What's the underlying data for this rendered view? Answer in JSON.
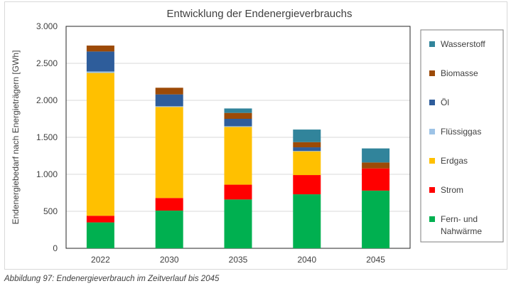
{
  "chart_data": {
    "type": "bar",
    "stacked": true,
    "title": "Entwicklung der Endenergieverbrauchs",
    "ylabel": "Endenergiebedarf  nach Energieträgern  [GWh]",
    "xlabel": "",
    "ylim": [
      0,
      3000
    ],
    "yticks": [
      0,
      500,
      1000,
      1500,
      2000,
      2500,
      3000
    ],
    "yticklabels": [
      "0",
      "500",
      "1.000",
      "1.500",
      "2.000",
      "2.500",
      "3.000"
    ],
    "grid": "horizontal",
    "legend_position": "right",
    "categories": [
      "2022",
      "2030",
      "2035",
      "2040",
      "2045"
    ],
    "series": [
      {
        "name": "Fern- und Nahwärme",
        "legend_lines": [
          "Fern- und",
          "Nahwärme"
        ],
        "color": "#00b050",
        "values": [
          350,
          510,
          660,
          730,
          780
        ]
      },
      {
        "name": "Strom",
        "legend_lines": [
          "Strom"
        ],
        "color": "#ff0000",
        "values": [
          90,
          170,
          200,
          260,
          300
        ]
      },
      {
        "name": "Erdgas",
        "legend_lines": [
          "Erdgas"
        ],
        "color": "#ffc000",
        "values": [
          1930,
          1230,
          780,
          320,
          0
        ]
      },
      {
        "name": "Flüssiggas",
        "legend_lines": [
          "Flüssiggas"
        ],
        "color": "#9dc3e6",
        "values": [
          20,
          10,
          10,
          5,
          0
        ]
      },
      {
        "name": "Öl",
        "legend_lines": [
          "Öl"
        ],
        "color": "#2e5d9b",
        "values": [
          270,
          160,
          100,
          50,
          0
        ]
      },
      {
        "name": "Biomasse",
        "legend_lines": [
          "Biomasse"
        ],
        "color": "#9c4a07",
        "values": [
          80,
          90,
          80,
          70,
          80
        ]
      },
      {
        "name": "Wasserstoff",
        "legend_lines": [
          "Wasserstoff"
        ],
        "color": "#31849b",
        "values": [
          0,
          0,
          60,
          170,
          190
        ]
      }
    ]
  },
  "caption": "Abbildung 97: Endenergieverbrauch im Zeitverlauf bis 2045"
}
